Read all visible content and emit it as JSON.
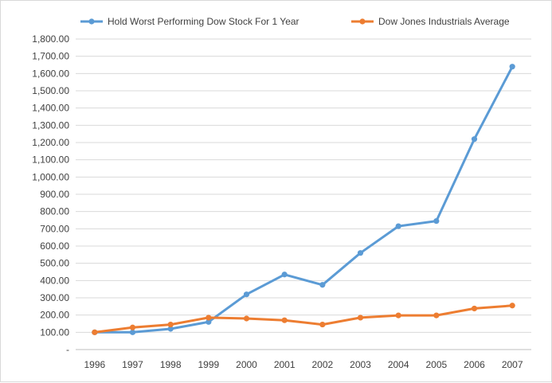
{
  "chart_data": {
    "type": "line",
    "title": "",
    "xlabel": "",
    "ylabel": "",
    "x": [
      "1996",
      "1997",
      "1998",
      "1999",
      "2000",
      "2001",
      "2002",
      "2003",
      "2004",
      "2005",
      "2006",
      "2007"
    ],
    "ylim": [
      0,
      1800
    ],
    "yticks": [
      0,
      100,
      200,
      300,
      400,
      500,
      600,
      700,
      800,
      900,
      1000,
      1100,
      1200,
      1300,
      1400,
      1500,
      1600,
      1700,
      1800
    ],
    "ytick_labels": [
      "-",
      "100.00",
      "200.00",
      "300.00",
      "400.00",
      "500.00",
      "600.00",
      "700.00",
      "800.00",
      "900.00",
      "1,000.00",
      "1,100.00",
      "1,200.00",
      "1,300.00",
      "1,400.00",
      "1,500.00",
      "1,600.00",
      "1,700.00",
      "1,800.00"
    ],
    "grid": true,
    "legend_position": "top",
    "series": [
      {
        "name": "Hold Worst Performing Dow Stock For 1 Year",
        "color": "#5b9bd5",
        "values": [
          100,
          100,
          120,
          160,
          320,
          435,
          375,
          560,
          715,
          745,
          1220,
          1640
        ]
      },
      {
        "name": "Dow Jones Industrials Average",
        "color": "#ed7d31",
        "values": [
          100,
          128,
          145,
          185,
          180,
          170,
          145,
          185,
          198,
          198,
          238,
          255
        ]
      }
    ]
  }
}
